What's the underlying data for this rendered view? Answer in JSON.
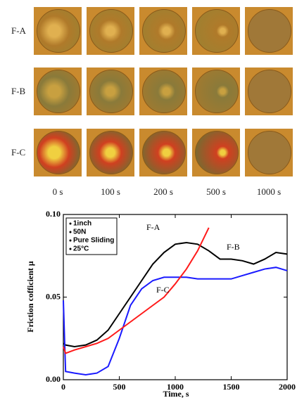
{
  "figure": {
    "rows": [
      "F-A",
      "F-B",
      "F-C"
    ],
    "columns": [
      "0 s",
      "100 s",
      "200 s",
      "500 s",
      "1000 s"
    ]
  },
  "chart_data": {
    "type": "line",
    "xlabel": "Time, s",
    "ylabel": "Friction cofficient μ",
    "annotations": [
      "1inch",
      "50N",
      "Pure Sliding",
      "25°C"
    ],
    "x": [
      0,
      20,
      100,
      200,
      300,
      400,
      500,
      600,
      700,
      800,
      900,
      1000,
      1100,
      1200,
      1300,
      1400,
      1500,
      1600,
      1700,
      1800,
      1900,
      2000
    ],
    "series": [
      {
        "name": "F-A",
        "color": "#000000",
        "values": [
          0.022,
          0.021,
          0.02,
          0.021,
          0.024,
          0.03,
          0.04,
          0.05,
          0.06,
          0.07,
          0.077,
          0.082,
          0.083,
          0.082,
          0.078,
          0.073,
          0.073,
          0.072,
          0.07,
          0.073,
          0.077,
          0.076
        ]
      },
      {
        "name": "F-B",
        "color": "#1a1aff",
        "values": [
          0.048,
          0.005,
          0.004,
          0.003,
          0.004,
          0.008,
          0.025,
          0.045,
          0.055,
          0.06,
          0.062,
          0.062,
          0.062,
          0.061,
          0.061,
          0.061,
          0.061,
          0.063,
          0.065,
          0.067,
          0.068,
          0.066
        ]
      },
      {
        "name": "F-C",
        "color": "#ff1a1a",
        "values": [
          0.02,
          0.016,
          0.018,
          0.02,
          0.022,
          0.025,
          0.03,
          0.035,
          0.04,
          0.045,
          0.05,
          0.058,
          0.067,
          0.078,
          0.092,
          null,
          null,
          null,
          null,
          null,
          null,
          null
        ]
      }
    ],
    "xlim": [
      0,
      2000
    ],
    "xticks": [
      0,
      500,
      1000,
      1500,
      2000
    ],
    "ylim": [
      0,
      0.1
    ],
    "yticks": [
      {
        "value": 0,
        "label": "0.00"
      },
      {
        "value": 0.05,
        "label": "0.05"
      },
      {
        "value": 0.1,
        "label": "0.10"
      }
    ]
  }
}
